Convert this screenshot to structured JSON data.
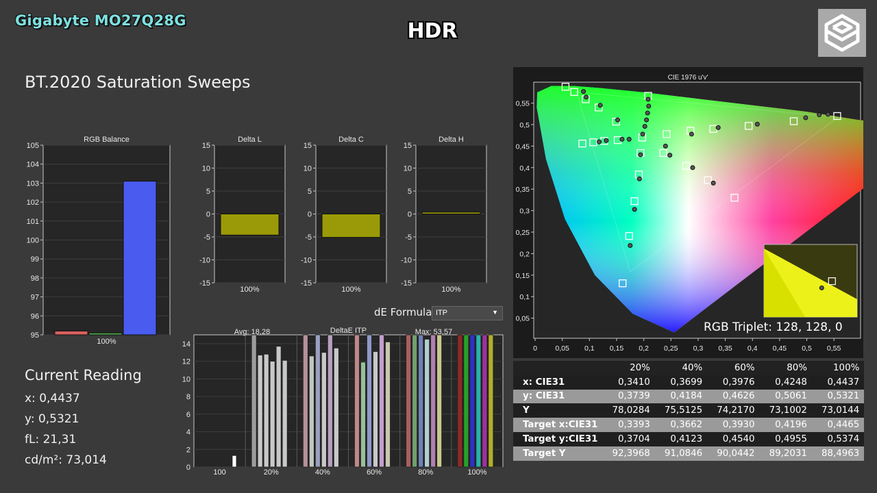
{
  "header": {
    "brand": "Gigabyte MO27Q28G",
    "mode": "HDR",
    "logo_icon": "cube-logo-icon"
  },
  "page_title": "BT.2020 Saturation Sweeps",
  "current_reading": {
    "title": "Current Reading",
    "x": "x: 0,4437",
    "y": "y: 0,5321",
    "fl": "fL: 21,31",
    "cdm2": "cd/m²: 73,014"
  },
  "de_formula": {
    "label": "dE Formula:",
    "value": "ITP"
  },
  "rgb_triplet": "RGB Triplet: 128, 128, 0",
  "chart_data": [
    {
      "type": "bar",
      "title": "RGB Balance",
      "categories": [
        "100%"
      ],
      "series": [
        {
          "name": "R",
          "values": [
            95.2
          ],
          "color": "#d9605e"
        },
        {
          "name": "G",
          "values": [
            95.1
          ],
          "color": "#4fae4f"
        },
        {
          "name": "B",
          "values": [
            103.1
          ],
          "color": "#4a5cf0"
        }
      ],
      "ylim": [
        95,
        105
      ],
      "yticks": [
        "95",
        "96",
        "97",
        "98",
        "99",
        "100",
        "101",
        "102",
        "103",
        "104",
        "105"
      ]
    },
    {
      "type": "bar",
      "title": "Delta L",
      "categories": [
        "100%"
      ],
      "values": [
        -4.6
      ],
      "ylim": [
        -15,
        15
      ],
      "yticks": [
        "-15",
        "-10",
        "-5",
        "0",
        "5",
        "10",
        "15"
      ]
    },
    {
      "type": "bar",
      "title": "Delta C",
      "categories": [
        "100%"
      ],
      "values": [
        -5.1
      ],
      "ylim": [
        -15,
        15
      ],
      "yticks": [
        "-15",
        "-10",
        "-5",
        "0",
        "5",
        "10",
        "15"
      ]
    },
    {
      "type": "bar",
      "title": "Delta H",
      "categories": [
        "100%"
      ],
      "values": [
        0.4
      ],
      "ylim": [
        -15,
        15
      ],
      "yticks": [
        "-15",
        "-10",
        "-5",
        "0",
        "5",
        "10",
        "15"
      ]
    },
    {
      "type": "bar",
      "title": "DeltaE ITP",
      "avg_label": "Avg: 18,28",
      "max_label": "Max: 53,57",
      "ylim": [
        0,
        15
      ],
      "yticks": [
        "0",
        "2",
        "4",
        "6",
        "8",
        "10",
        "12",
        "14"
      ],
      "groups": [
        {
          "label": "100",
          "bars": [
            {
              "v": 1.3,
              "c": "#ffffff"
            }
          ]
        },
        {
          "label": "20%",
          "bars": [
            {
              "v": 53.6,
              "c": "#9c9c9c"
            },
            {
              "v": 12.7,
              "c": "#c8c8c8"
            },
            {
              "v": 12.8,
              "c": "#c8c8c8"
            },
            {
              "v": 12.0,
              "c": "#c8c8c8"
            },
            {
              "v": 13.7,
              "c": "#c8c8c8"
            },
            {
              "v": 12.1,
              "c": "#c8c8c8"
            }
          ]
        },
        {
          "label": "40%",
          "bars": [
            {
              "v": 40,
              "c": "#b7909a"
            },
            {
              "v": 12.6,
              "c": "#bfc8bf"
            },
            {
              "v": 30,
              "c": "#9aa0c0"
            },
            {
              "v": 13.0,
              "c": "#c8c8c8"
            },
            {
              "v": 30,
              "c": "#b7a0c0"
            },
            {
              "v": 13.5,
              "c": "#c8c8c8"
            }
          ]
        },
        {
          "label": "60%",
          "bars": [
            {
              "v": 40,
              "c": "#c08888"
            },
            {
              "v": 11.9,
              "c": "#98c098"
            },
            {
              "v": 30,
              "c": "#9098c8"
            },
            {
              "v": 13.1,
              "c": "#c8c8c8"
            },
            {
              "v": 30,
              "c": "#c0a0c8"
            },
            {
              "v": 14.2,
              "c": "#c8c8b0"
            }
          ]
        },
        {
          "label": "80%",
          "bars": [
            {
              "v": 40,
              "c": "#a86060"
            },
            {
              "v": 40,
              "c": "#70a070"
            },
            {
              "v": 40,
              "c": "#7080b8"
            },
            {
              "v": 14.5,
              "c": "#b0d0d0"
            },
            {
              "v": 40,
              "c": "#b080b0"
            },
            {
              "v": 40,
              "c": "#c8c890"
            }
          ]
        },
        {
          "label": "100%",
          "bars": [
            {
              "v": 40,
              "c": "#902828"
            },
            {
              "v": 40,
              "c": "#28a028"
            },
            {
              "v": 40,
              "c": "#3030c8"
            },
            {
              "v": 40,
              "c": "#28b0b0"
            },
            {
              "v": 40,
              "c": "#a030a0"
            },
            {
              "v": 40,
              "c": "#b0b028"
            }
          ]
        }
      ]
    },
    {
      "type": "scatter",
      "title": "CIE 1976 u'v'",
      "xlim": [
        0,
        0.6
      ],
      "ylim": [
        0,
        0.6
      ],
      "xticks": [
        "0",
        "0,05",
        "0,1",
        "0,15",
        "0,2",
        "0,25",
        "0,3",
        "0,35",
        "0,4",
        "0,45",
        "0,5",
        "0,55"
      ],
      "yticks": [
        "0,05",
        "0,1",
        "0,15",
        "0,2",
        "0,25",
        "0,3",
        "0,35",
        "0,4",
        "0,45",
        "0,5",
        "0,55"
      ],
      "targets": [
        [
          0.056,
          0.588
        ],
        [
          0.072,
          0.576
        ],
        [
          0.093,
          0.559
        ],
        [
          0.117,
          0.54
        ],
        [
          0.149,
          0.507
        ],
        [
          0.208,
          0.567
        ],
        [
          0.087,
          0.456
        ],
        [
          0.107,
          0.459
        ],
        [
          0.127,
          0.462
        ],
        [
          0.152,
          0.464
        ],
        [
          0.197,
          0.47
        ],
        [
          0.242,
          0.478
        ],
        [
          0.286,
          0.486
        ],
        [
          0.328,
          0.49
        ],
        [
          0.393,
          0.497
        ],
        [
          0.476,
          0.508
        ],
        [
          0.556,
          0.52
        ],
        [
          0.194,
          0.434
        ],
        [
          0.191,
          0.384
        ],
        [
          0.183,
          0.322
        ],
        [
          0.173,
          0.241
        ],
        [
          0.161,
          0.131
        ],
        [
          0.236,
          0.434
        ],
        [
          0.278,
          0.404
        ],
        [
          0.318,
          0.371
        ],
        [
          0.367,
          0.33
        ]
      ],
      "measured": [
        [
          0.089,
          0.577
        ],
        [
          0.094,
          0.564
        ],
        [
          0.12,
          0.545
        ],
        [
          0.152,
          0.511
        ],
        [
          0.208,
          0.559
        ],
        [
          0.209,
          0.543
        ],
        [
          0.207,
          0.527
        ],
        [
          0.205,
          0.511
        ],
        [
          0.202,
          0.496
        ],
        [
          0.198,
          0.478
        ],
        [
          0.118,
          0.46
        ],
        [
          0.131,
          0.463
        ],
        [
          0.16,
          0.466
        ],
        [
          0.173,
          0.466
        ],
        [
          0.24,
          0.45
        ],
        [
          0.288,
          0.478
        ],
        [
          0.337,
          0.493
        ],
        [
          0.409,
          0.501
        ],
        [
          0.523,
          0.523
        ],
        [
          0.498,
          0.516
        ],
        [
          0.539,
          0.524
        ],
        [
          0.194,
          0.43
        ],
        [
          0.192,
          0.374
        ],
        [
          0.183,
          0.303
        ],
        [
          0.175,
          0.219
        ],
        [
          0.248,
          0.429
        ],
        [
          0.29,
          0.4
        ],
        [
          0.328,
          0.364
        ]
      ],
      "inset": {
        "target": [
          0.73,
          0.27
        ],
        "measured": [
          0.62,
          0.41
        ]
      }
    }
  ],
  "readings_table": {
    "columns": [
      "",
      "20%",
      "40%",
      "60%",
      "80%",
      "100%"
    ],
    "rows": [
      {
        "label": "x: CIE31",
        "values": [
          "0,3410",
          "0,3699",
          "0,3976",
          "0,4248",
          "0,4437"
        ],
        "style": "dark"
      },
      {
        "label": "y: CIE31",
        "values": [
          "0,3739",
          "0,4184",
          "0,4626",
          "0,5061",
          "0,5321"
        ],
        "style": "light"
      },
      {
        "label": "Y",
        "values": [
          "78,0284",
          "75,5125",
          "74,2170",
          "73,1002",
          "73,0144"
        ],
        "style": "dark"
      },
      {
        "label": "Target x:CIE31",
        "values": [
          "0,3393",
          "0,3662",
          "0,3930",
          "0,4196",
          "0,4465"
        ],
        "style": "light"
      },
      {
        "label": "Target y:CIE31",
        "values": [
          "0,3704",
          "0,4123",
          "0,4540",
          "0,4955",
          "0,5374"
        ],
        "style": "dark"
      },
      {
        "label": "Target Y",
        "values": [
          "92,3968",
          "91,0846",
          "90,0442",
          "89,2031",
          "88,4963"
        ],
        "style": "light"
      }
    ]
  }
}
